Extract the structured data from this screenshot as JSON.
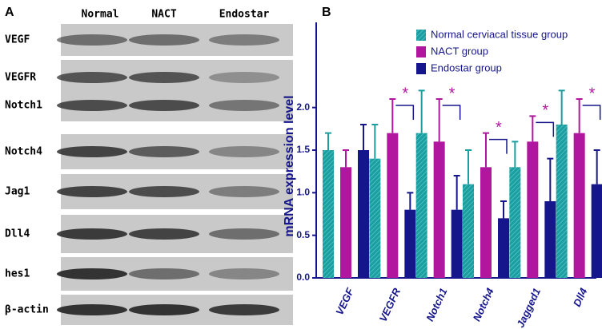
{
  "blot": {
    "panel_label": "A",
    "columns": [
      "Normal",
      "NACT",
      "Endostar"
    ],
    "rows": [
      "VEGF",
      "VEGFR",
      "Notch1",
      "Notch4",
      "Jag1",
      "Dll4",
      "hes1",
      "β-actin"
    ]
  },
  "chart_data": {
    "type": "bar",
    "panel_label": "B",
    "y_label": "mRNA expression level",
    "categories": [
      "VEGF",
      "VEGFR",
      "Notch1",
      "Notch4",
      "Jagged1",
      "Dll4"
    ],
    "series": [
      {
        "name": "Normal cerviacal  tissue group",
        "color": "#1a9ea0",
        "values": [
          1.5,
          1.4,
          1.7,
          1.1,
          1.3,
          1.8
        ],
        "errors": [
          0.2,
          0.4,
          0.5,
          0.4,
          0.3,
          0.4
        ]
      },
      {
        "name": "NACT group",
        "color": "#b0179e",
        "values": [
          1.3,
          1.7,
          1.6,
          1.3,
          1.6,
          1.7
        ],
        "errors": [
          0.2,
          0.4,
          0.5,
          0.4,
          0.3,
          0.4
        ]
      },
      {
        "name": "Endostar group",
        "color": "#16168c",
        "values": [
          1.5,
          0.8,
          0.8,
          0.7,
          0.9,
          1.1
        ],
        "errors": [
          0.3,
          0.2,
          0.4,
          0.2,
          0.5,
          0.4
        ]
      }
    ],
    "significance": [
      null,
      "*",
      "*",
      "*",
      "*",
      "*"
    ],
    "ylim": [
      0,
      3
    ],
    "yticks": [
      {
        "value": 0,
        "label": "0.0"
      },
      {
        "value": 0.5,
        "label": "0.5"
      },
      {
        "value": 1,
        "label": "1.0"
      },
      {
        "value": 1.5,
        "label": "1.5"
      },
      {
        "value": 2,
        "label": "2.0"
      }
    ],
    "legend": "top-right"
  }
}
